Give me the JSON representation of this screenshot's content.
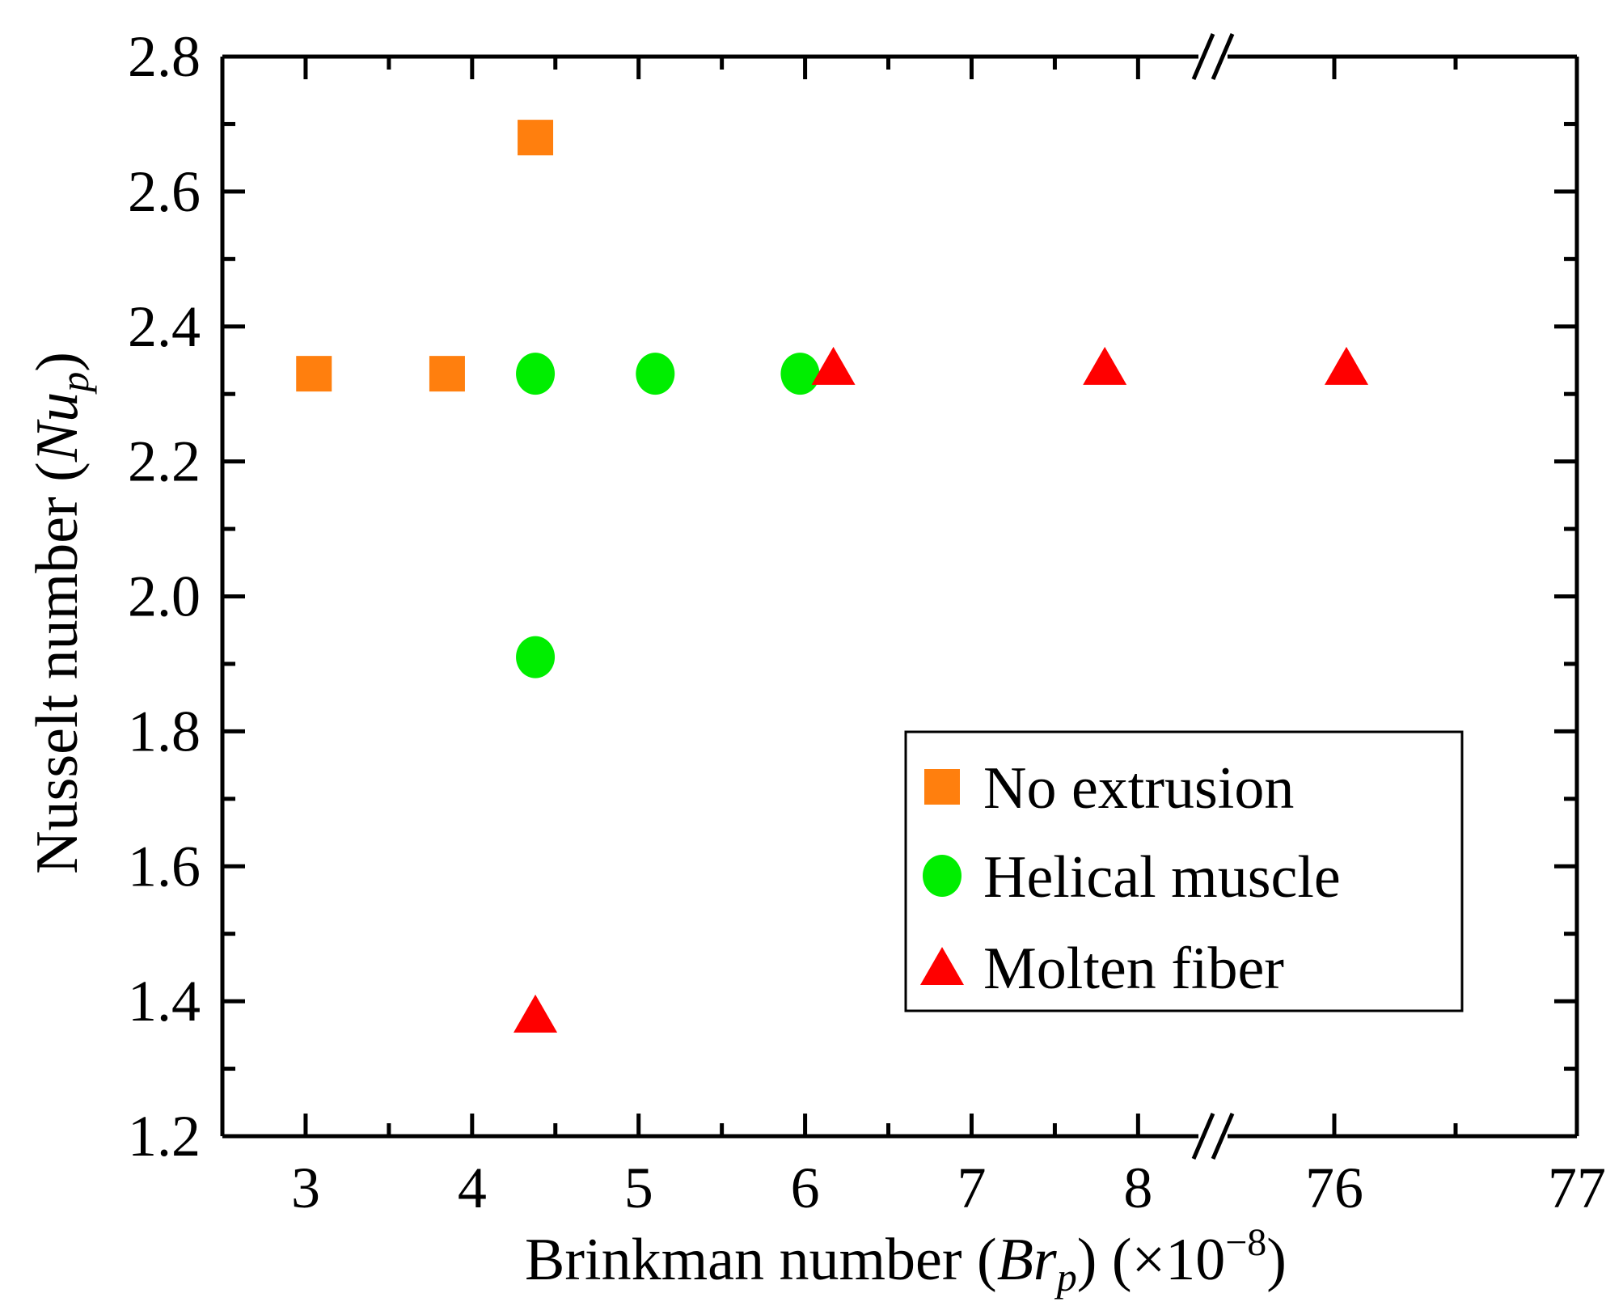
{
  "chart_data": {
    "type": "scatter",
    "xlabel": {
      "prefix": "Brinkman number (",
      "var": "Br",
      "sub": "p",
      "suffix": ") (×10",
      "sup": "−8",
      "close": ")"
    },
    "ylabel": {
      "prefix": "Nusselt number (",
      "var": "Nu",
      "sub": "p",
      "close": ")"
    },
    "ylim": [
      1.2,
      2.8
    ],
    "yticks": [
      "1.2",
      "1.4",
      "1.6",
      "1.8",
      "2.0",
      "2.2",
      "2.4",
      "2.6",
      "2.8"
    ],
    "x_axis_break": true,
    "x_segments": [
      {
        "range": [
          2.5,
          8.45
        ],
        "ticks": [
          "3",
          "4",
          "5",
          "6",
          "7",
          "8"
        ]
      },
      {
        "range": [
          75.5,
          77
        ],
        "ticks": [
          "76",
          "77"
        ]
      }
    ],
    "legend_position": "lower-right",
    "series": [
      {
        "name": "No extrusion",
        "marker": "square",
        "color": "#ff7f0e",
        "points": [
          [
            3.05,
            2.33
          ],
          [
            3.85,
            2.33
          ],
          [
            4.38,
            2.68
          ]
        ]
      },
      {
        "name": "Helical muscle",
        "marker": "circle",
        "color": "#00ee00",
        "points": [
          [
            4.38,
            2.33
          ],
          [
            5.1,
            2.33
          ],
          [
            5.97,
            2.33
          ],
          [
            4.38,
            1.91
          ]
        ]
      },
      {
        "name": "Molten fiber",
        "marker": "triangle",
        "color": "#ff0000",
        "points": [
          [
            6.17,
            2.34
          ],
          [
            7.8,
            2.34
          ],
          [
            76.05,
            2.34
          ],
          [
            4.38,
            1.38
          ]
        ]
      }
    ]
  }
}
